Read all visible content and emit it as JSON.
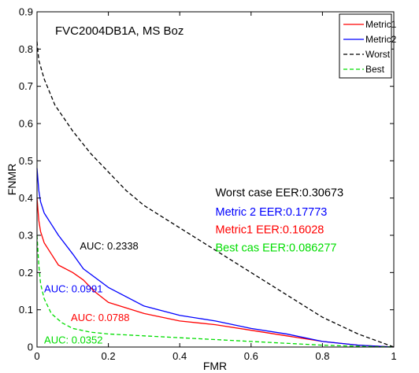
{
  "chart_data": {
    "type": "line",
    "title": "FVC2004DB1A, MS Boz",
    "xlabel": "FMR",
    "ylabel": "FNMR",
    "xlim": [
      0,
      1
    ],
    "ylim": [
      0,
      0.9
    ],
    "xticks": [
      "0",
      "0.2",
      "0.4",
      "0.6",
      "0.8",
      "1"
    ],
    "yticks": [
      "0",
      "0.1",
      "0.2",
      "0.3",
      "0.4",
      "0.5",
      "0.6",
      "0.7",
      "0.8",
      "0.9"
    ],
    "grid": false,
    "legend_position": "top-right",
    "series": [
      {
        "name": "Metric1",
        "color": "#ff0000",
        "style": "solid",
        "points": [
          [
            0,
            0.4
          ],
          [
            0.005,
            0.34
          ],
          [
            0.01,
            0.31
          ],
          [
            0.02,
            0.28
          ],
          [
            0.04,
            0.25
          ],
          [
            0.06,
            0.22
          ],
          [
            0.1,
            0.2
          ],
          [
            0.13,
            0.18
          ],
          [
            0.16,
            0.15
          ],
          [
            0.2,
            0.12
          ],
          [
            0.3,
            0.09
          ],
          [
            0.4,
            0.07
          ],
          [
            0.5,
            0.06
          ],
          [
            0.6,
            0.045
          ],
          [
            0.7,
            0.03
          ],
          [
            0.8,
            0.015
          ],
          [
            0.9,
            0.005
          ],
          [
            1,
            0
          ]
        ]
      },
      {
        "name": "Metric2",
        "color": "#0000ff",
        "style": "solid",
        "points": [
          [
            0,
            0.48
          ],
          [
            0.005,
            0.42
          ],
          [
            0.01,
            0.39
          ],
          [
            0.02,
            0.36
          ],
          [
            0.04,
            0.33
          ],
          [
            0.06,
            0.3
          ],
          [
            0.1,
            0.25
          ],
          [
            0.13,
            0.21
          ],
          [
            0.2,
            0.16
          ],
          [
            0.3,
            0.11
          ],
          [
            0.4,
            0.085
          ],
          [
            0.5,
            0.07
          ],
          [
            0.6,
            0.05
          ],
          [
            0.7,
            0.035
          ],
          [
            0.8,
            0.015
          ],
          [
            0.9,
            0.005
          ],
          [
            1,
            0
          ]
        ]
      },
      {
        "name": "Worst",
        "color": "#000000",
        "style": "dashed",
        "points": [
          [
            0,
            0.82
          ],
          [
            0.005,
            0.77
          ],
          [
            0.02,
            0.72
          ],
          [
            0.05,
            0.65
          ],
          [
            0.1,
            0.58
          ],
          [
            0.15,
            0.52
          ],
          [
            0.2,
            0.47
          ],
          [
            0.25,
            0.42
          ],
          [
            0.3,
            0.38
          ],
          [
            0.4,
            0.32
          ],
          [
            0.5,
            0.26
          ],
          [
            0.6,
            0.2
          ],
          [
            0.7,
            0.14
          ],
          [
            0.8,
            0.08
          ],
          [
            0.9,
            0.035
          ],
          [
            1,
            0
          ]
        ]
      },
      {
        "name": "Best",
        "color": "#00dd00",
        "style": "dashed",
        "points": [
          [
            0,
            0.3
          ],
          [
            0.005,
            0.22
          ],
          [
            0.01,
            0.17
          ],
          [
            0.02,
            0.13
          ],
          [
            0.04,
            0.09
          ],
          [
            0.07,
            0.065
          ],
          [
            0.1,
            0.05
          ],
          [
            0.15,
            0.04
          ],
          [
            0.2,
            0.035
          ],
          [
            0.3,
            0.03
          ],
          [
            0.4,
            0.025
          ],
          [
            0.5,
            0.02
          ],
          [
            0.6,
            0.015
          ],
          [
            0.7,
            0.01
          ],
          [
            0.8,
            0.005
          ],
          [
            0.9,
            0.002
          ],
          [
            1,
            0
          ]
        ]
      }
    ],
    "eer_annotations": [
      {
        "text": "Worst case EER:0.30673",
        "color": "#000000",
        "x": 0.5,
        "y": 0.405
      },
      {
        "text": "Metric 2 EER:0.17773",
        "color": "#0000ff",
        "x": 0.5,
        "y": 0.353
      },
      {
        "text": "Metric1 EER:0.16028",
        "color": "#ff0000",
        "x": 0.5,
        "y": 0.305
      },
      {
        "text": "Best cas EER:0.086277",
        "color": "#00dd00",
        "x": 0.5,
        "y": 0.257
      }
    ],
    "auc_annotations": [
      {
        "text": "AUC: 0.2338",
        "color": "#000000",
        "x": 0.12,
        "y": 0.262
      },
      {
        "text": "AUC: 0.0991",
        "color": "#0000ff",
        "x": 0.02,
        "y": 0.147
      },
      {
        "text": "AUC: 0.0788",
        "color": "#ff0000",
        "x": 0.095,
        "y": 0.07
      },
      {
        "text": "AUC: 0.0352",
        "color": "#00dd00",
        "x": 0.02,
        "y": 0.01
      }
    ]
  }
}
